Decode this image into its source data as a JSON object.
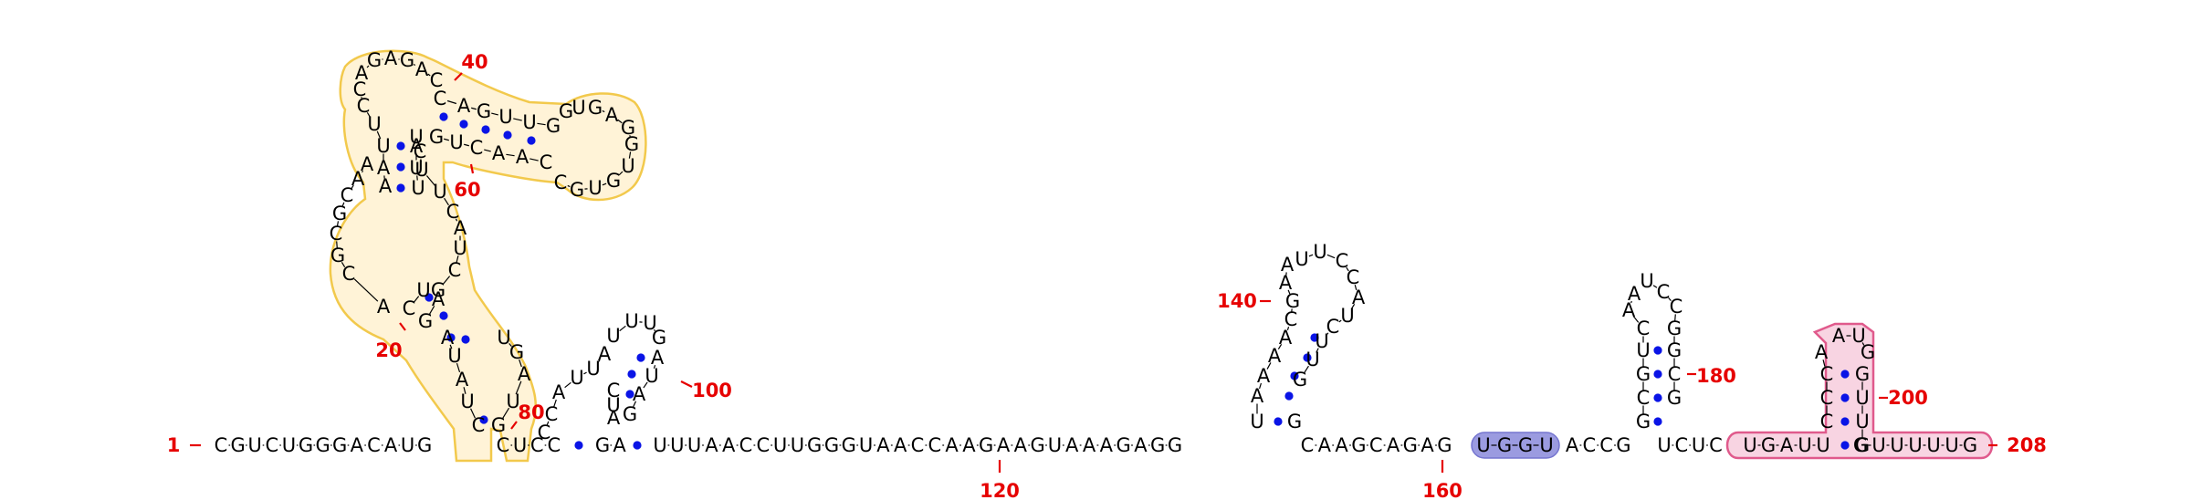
{
  "diagram": {
    "type": "rna-secondary-structure",
    "length": 208,
    "colors": {
      "nucleotide": "#000000",
      "base_pair": "#0a14e6",
      "numbering": "#e60000",
      "highlight_yellow": "#f2c94c",
      "highlight_blue": "#8c8cdc",
      "highlight_pink": "#e05a8c"
    },
    "position_labels": [
      "1",
      "20",
      "40",
      "60",
      "80",
      "100",
      "120",
      "140",
      "160",
      "180",
      "200",
      "208"
    ],
    "backbone": [
      {
        "name": "backbone-5prime-segment",
        "text": "C-G-U-C-U-G-G-G-A-C-A-U-G"
      },
      {
        "name": "backbone-linker-80",
        "text": "C-U-C-C"
      },
      {
        "name": "backbone-linker-90",
        "text": "G-A"
      },
      {
        "name": "backbone-linker-100-150",
        "text": "U-U-U-A-A-C-C-U-U-G-G-G-U-A-A-C-C-A-A-G-A-A-G-U-A-A-A-G-A-G-G"
      },
      {
        "name": "backbone-linker-150-160",
        "text": "C-A-A-G-C-A-G-A-G"
      },
      {
        "name": "backbone-highlight-ugg",
        "text": "U-G-G-U"
      },
      {
        "name": "backbone-linker-170",
        "text": "A-C-C-G"
      },
      {
        "name": "backbone-linker-185",
        "text": "U-C-U-C"
      },
      {
        "name": "backbone-highlight-ugauu",
        "text": "U-G-A-U-U"
      },
      {
        "name": "backbone-3prime-tail",
        "text": "G-U-U-U-U-U-G"
      }
    ],
    "highlights": [
      {
        "name": "highlight-yellow-domain",
        "color": "yellow"
      },
      {
        "name": "highlight-blue-ugg",
        "color": "blue"
      },
      {
        "name": "highlight-pink-terminator",
        "color": "pink"
      }
    ]
  }
}
